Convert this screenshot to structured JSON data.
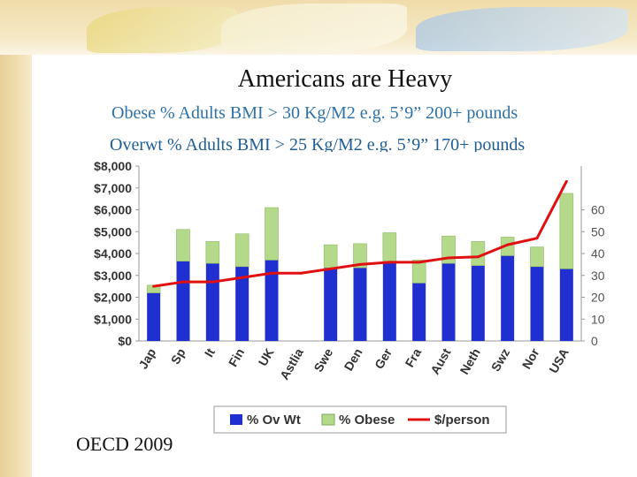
{
  "slide": {
    "title": "Americans are Heavy",
    "line1": "Obese % Adults BMI > 30 Kg/M2 e.g. 5’9” 200+ pounds",
    "line2": "Overwt % Adults BMI > 25 Kg/M2 e.g. 5’9” 170+ pounds",
    "footer": "OECD 2009"
  },
  "colors": {
    "overweight": "#1f2fd0",
    "obese": "#b5d98a",
    "line": "#e01010"
  },
  "chart_data": {
    "type": "bar",
    "stacked": true,
    "categories": [
      "Jap",
      "Sp",
      "It",
      "Fin",
      "UK",
      "Astlia",
      "Swe",
      "Den",
      "Ger",
      "Fra",
      "Aust",
      "Neth",
      "Swz",
      "Nor",
      "USA"
    ],
    "series": [
      {
        "name": "% Ov Wt",
        "axis": "right",
        "values": [
          22,
          36.5,
          35.5,
          34,
          37,
          null,
          33.5,
          33.5,
          36.5,
          26.5,
          35.5,
          34.5,
          39,
          34,
          33
        ]
      },
      {
        "name": "% Obese",
        "axis": "right",
        "values": [
          3.5,
          14.5,
          10,
          15,
          24,
          null,
          10.5,
          11,
          13,
          10.5,
          12.5,
          11,
          8.5,
          9,
          34.5
        ]
      },
      {
        "name": "$/person",
        "axis": "left",
        "type": "line",
        "values": [
          2500,
          2700,
          2700,
          2900,
          3100,
          3100,
          3300,
          3500,
          3600,
          3600,
          3800,
          3850,
          4400,
          4700,
          7300
        ]
      }
    ],
    "left_axis": {
      "ticks": [
        "$0",
        "$1,000",
        "$2,000",
        "$3,000",
        "$4,000",
        "$5,000",
        "$6,000",
        "$7,000",
        "$8,000"
      ],
      "ylim": [
        0,
        8000
      ]
    },
    "right_axis": {
      "ticks": [
        "0",
        "10",
        "20",
        "30",
        "40",
        "50",
        "60"
      ],
      "ylim": [
        0,
        80
      ]
    },
    "legend": [
      "% Ov Wt",
      "% Obese",
      "$/person"
    ]
  }
}
